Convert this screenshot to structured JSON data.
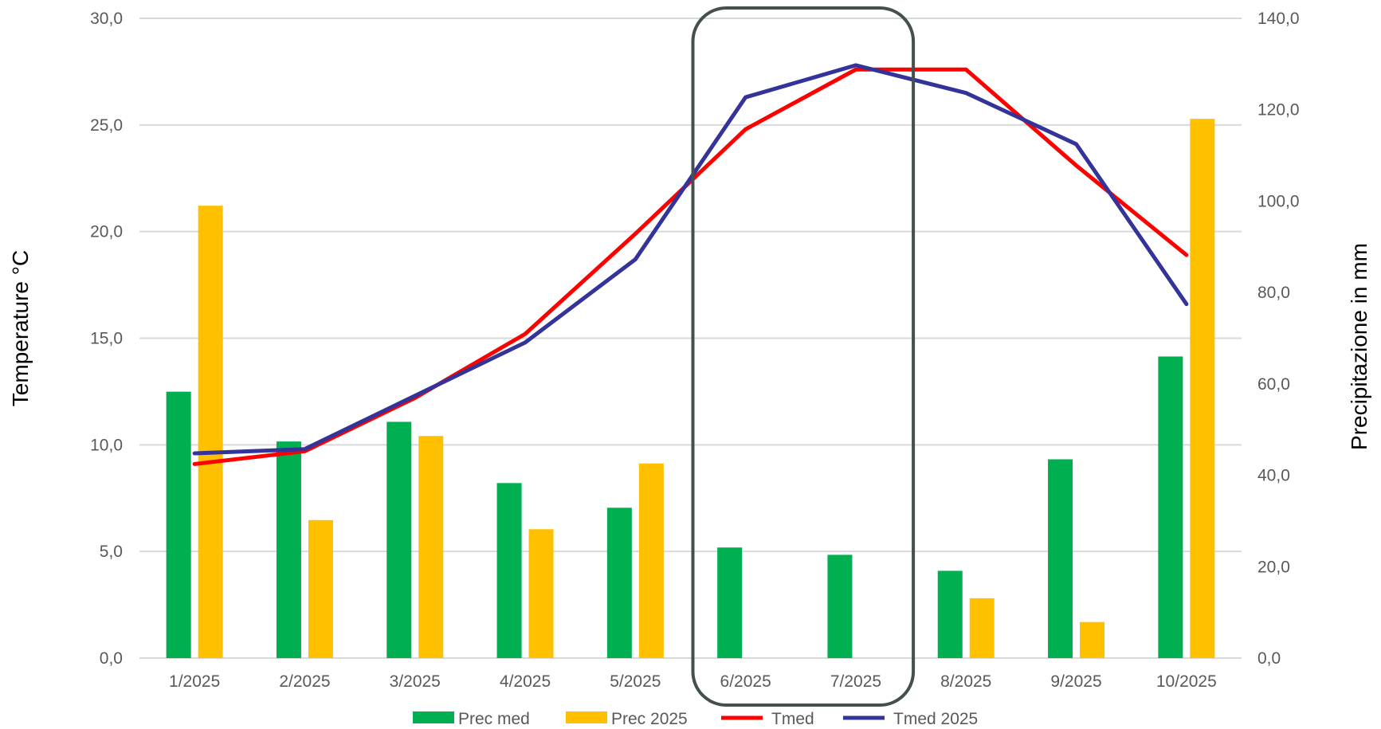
{
  "chart_data": {
    "type": "bar",
    "categories": [
      "1/2025",
      "2/2025",
      "3/2025",
      "4/2025",
      "5/2025",
      "6/2025",
      "7/2025",
      "8/2025",
      "9/2025",
      "10/2025"
    ],
    "series": [
      {
        "name": "Prec med",
        "kind": "bar",
        "axis": "right",
        "color": "#00b050",
        "values": [
          58.3,
          47.4,
          51.7,
          38.3,
          32.9,
          24.2,
          22.6,
          19.1,
          43.5,
          66.0
        ]
      },
      {
        "name": "Prec 2025",
        "kind": "bar",
        "axis": "right",
        "color": "#ffc000",
        "values": [
          99.0,
          30.2,
          48.6,
          28.2,
          42.6,
          0,
          0,
          13.1,
          7.9,
          118.0
        ]
      },
      {
        "name": "Tmed",
        "kind": "line",
        "axis": "left",
        "color": "#ff0000",
        "values": [
          9.1,
          9.7,
          12.2,
          15.2,
          19.9,
          24.8,
          27.6,
          27.6,
          23.1,
          18.9
        ]
      },
      {
        "name": "Tmed 2025",
        "kind": "line",
        "axis": "left",
        "color": "#333399",
        "values": [
          9.6,
          9.8,
          12.3,
          14.8,
          18.7,
          26.3,
          27.8,
          26.5,
          24.1,
          16.6
        ]
      }
    ],
    "ylabel": "Temperature °C",
    "y2label": "Precipitazione in mm",
    "ylim": [
      0,
      30
    ],
    "y2lim": [
      0,
      140
    ],
    "yticks": [
      "0,0",
      "5,0",
      "10,0",
      "15,0",
      "20,0",
      "25,0",
      "30,0"
    ],
    "y2ticks": [
      "0,0",
      "20,0",
      "40,0",
      "60,0",
      "80,0",
      "100,0",
      "120,0",
      "140,0"
    ],
    "grid": true,
    "legend_position": "bottom",
    "highlight": {
      "from_category": "6/2025",
      "to_category": "7/2025",
      "color": "#44504f"
    }
  }
}
